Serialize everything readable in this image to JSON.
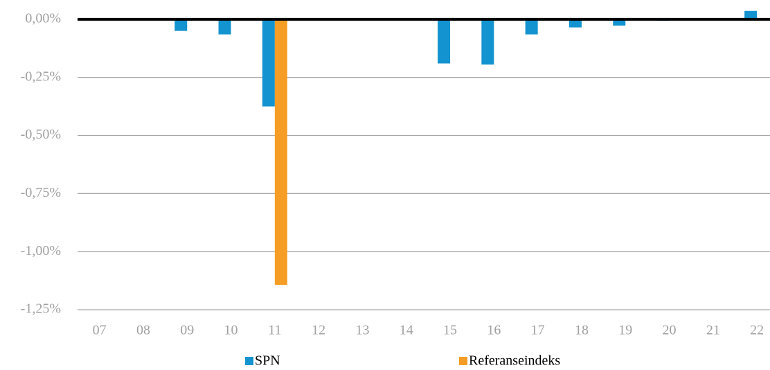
{
  "chart_data": {
    "type": "bar",
    "categories": [
      "07",
      "08",
      "09",
      "10",
      "11",
      "12",
      "13",
      "14",
      "15",
      "16",
      "17",
      "18",
      "19",
      "20",
      "21",
      "22"
    ],
    "series": [
      {
        "name": "SPN",
        "color": "#1393cf",
        "values": [
          null,
          null,
          -0.05,
          -0.065,
          -0.375,
          null,
          null,
          null,
          -0.19,
          -0.195,
          -0.065,
          -0.035,
          -0.027,
          -0.006,
          null,
          0.036
        ]
      },
      {
        "name": "Referanseindeks",
        "color": "#f59d25",
        "values": [
          null,
          null,
          null,
          null,
          -1.143,
          null,
          null,
          null,
          null,
          null,
          null,
          null,
          null,
          null,
          null,
          null
        ]
      }
    ],
    "ylim": [
      -1.25,
      0.083
    ],
    "yticks": [
      {
        "value": 0,
        "label": "0,00%"
      },
      {
        "value": -0.25,
        "label": "-0,25%"
      },
      {
        "value": -0.5,
        "label": "-0,50%"
      },
      {
        "value": -0.75,
        "label": "-0,75%"
      },
      {
        "value": -1,
        "label": "-1,00%"
      },
      {
        "value": -1.25,
        "label": "-1,25%"
      }
    ],
    "grid": true,
    "legend": "bottom"
  }
}
